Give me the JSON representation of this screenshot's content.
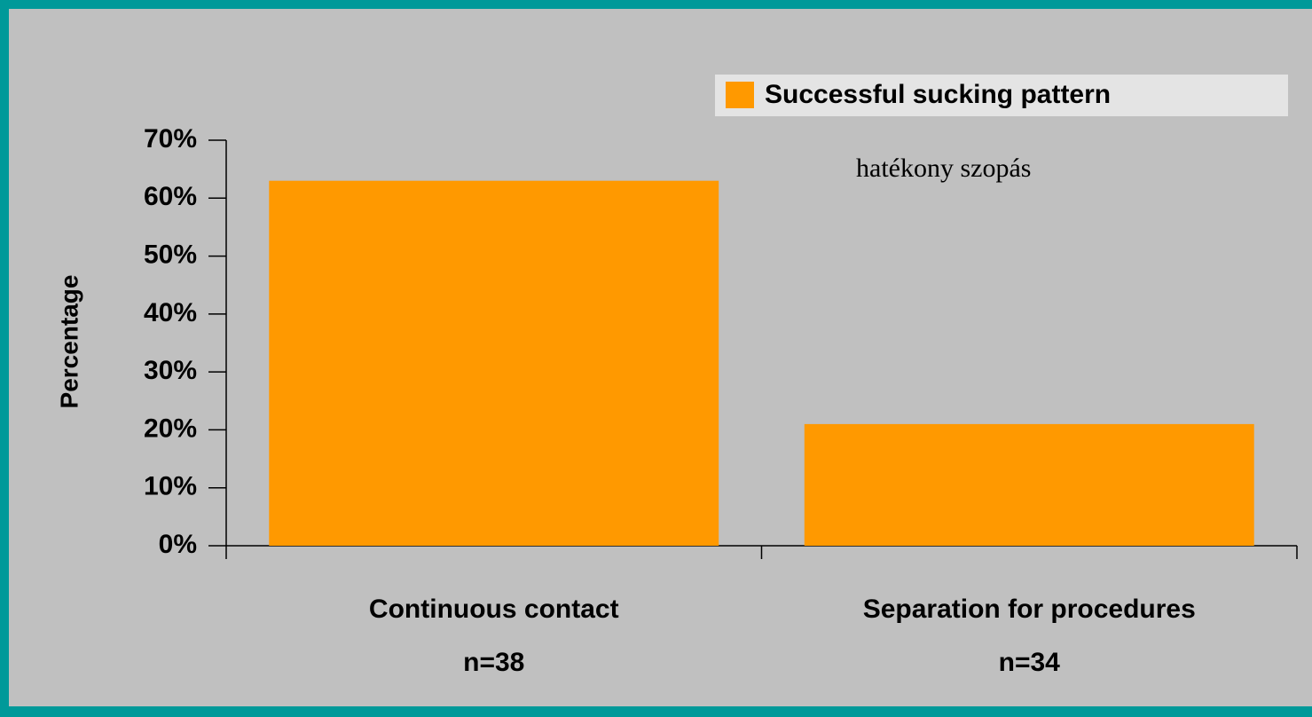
{
  "chart_data": {
    "type": "bar",
    "y_label": "Percentage",
    "annotation": "hatékony szopás",
    "categories": [
      [
        "Continuous contact",
        "n=38"
      ],
      [
        "Separation for procedures",
        "n=34"
      ]
    ],
    "series": [
      {
        "name": "Successful sucking pattern",
        "color": "#ff9900",
        "values": [
          63,
          21
        ]
      }
    ],
    "ylim": [
      0,
      70
    ],
    "yticks": [
      {
        "value": 0,
        "label": "0%"
      },
      {
        "value": 10,
        "label": "10%"
      },
      {
        "value": 20,
        "label": "20%"
      },
      {
        "value": 30,
        "label": "30%"
      },
      {
        "value": 40,
        "label": "40%"
      },
      {
        "value": 50,
        "label": "50%"
      },
      {
        "value": 60,
        "label": "60%"
      },
      {
        "value": 70,
        "label": "70%"
      }
    ],
    "grid": false,
    "legend": "top-right"
  }
}
